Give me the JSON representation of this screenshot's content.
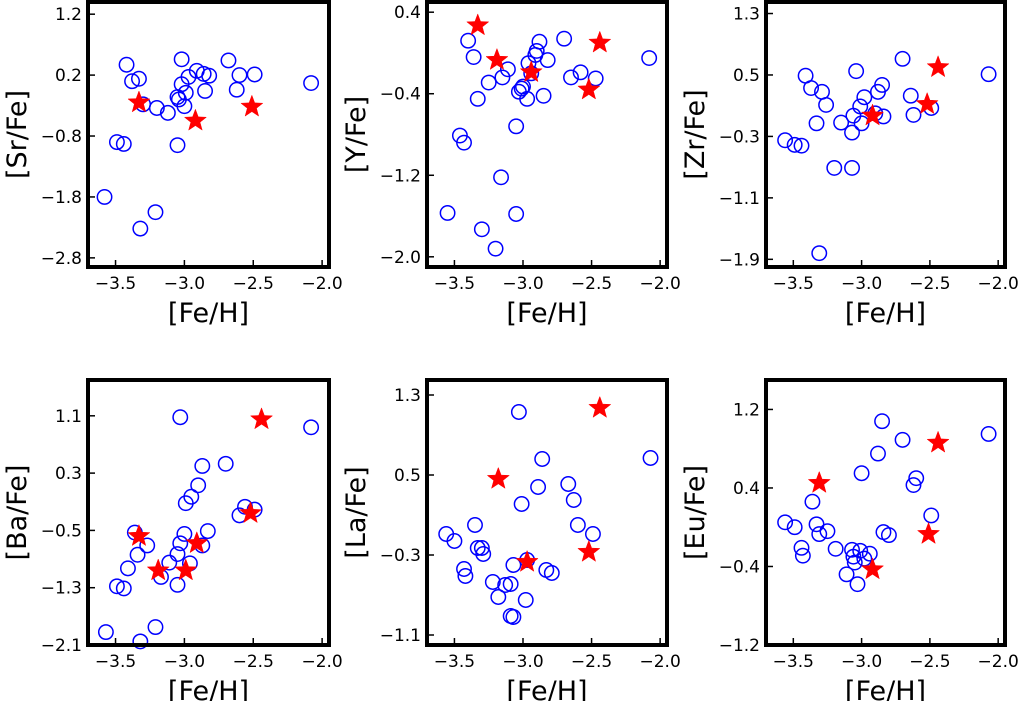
{
  "figure": {
    "colors": {
      "circle": "#0000ff",
      "star": "#ff0000",
      "axis": "#000000"
    }
  },
  "chart_data": [
    {
      "type": "scatter",
      "name": "sr",
      "xlabel": "[Fe/H]",
      "ylabel": "[Sr/Fe]",
      "xlim": [
        -3.7,
        -1.95
      ],
      "ylim": [
        -2.95,
        1.4
      ],
      "xticks": [
        -3.5,
        -3.0,
        -2.5,
        -2.0
      ],
      "xtick_labels": [
        "−3.5",
        "−3.0",
        "−2.5",
        "−2.0"
      ],
      "yticks": [
        1.2,
        0.2,
        -0.8,
        -1.8,
        -2.8
      ],
      "ytick_labels": [
        "1.2",
        "0.2",
        "−0.8",
        "−1.8",
        "−2.8"
      ],
      "series": [
        {
          "name": "circles",
          "marker": "circle",
          "points": [
            [
              -3.58,
              -1.8
            ],
            [
              -3.49,
              -0.9
            ],
            [
              -3.44,
              -0.93
            ],
            [
              -3.42,
              0.37
            ],
            [
              -3.38,
              0.1
            ],
            [
              -3.33,
              0.14
            ],
            [
              -3.32,
              -2.32
            ],
            [
              -3.3,
              -0.28
            ],
            [
              -3.21,
              -2.05
            ],
            [
              -3.2,
              -0.34
            ],
            [
              -3.12,
              -0.42
            ],
            [
              -3.05,
              -0.95
            ],
            [
              -3.05,
              -0.16
            ],
            [
              -3.04,
              -0.2
            ],
            [
              -3.02,
              0.46
            ],
            [
              -3.02,
              0.05
            ],
            [
              -3.0,
              -0.31
            ],
            [
              -2.99,
              -0.09
            ],
            [
              -2.97,
              0.17
            ],
            [
              -2.91,
              0.27
            ],
            [
              -2.86,
              0.22
            ],
            [
              -2.85,
              -0.06
            ],
            [
              -2.82,
              0.19
            ],
            [
              -2.68,
              0.44
            ],
            [
              -2.62,
              -0.04
            ],
            [
              -2.6,
              0.2
            ],
            [
              -2.49,
              0.21
            ],
            [
              -2.08,
              0.07
            ]
          ]
        },
        {
          "name": "stars",
          "marker": "star",
          "points": [
            [
              -3.33,
              -0.25
            ],
            [
              -2.92,
              -0.55
            ],
            [
              -2.51,
              -0.32
            ]
          ]
        }
      ]
    },
    {
      "type": "scatter",
      "name": "y",
      "xlabel": "[Fe/H]",
      "ylabel": "[Y/Fe]",
      "xlim": [
        -3.7,
        -1.95
      ],
      "ylim": [
        -2.1,
        0.5
      ],
      "xticks": [
        -3.5,
        -3.0,
        -2.5,
        -2.0
      ],
      "xtick_labels": [
        "−3.5",
        "−3.0",
        "−2.5",
        "−2.0"
      ],
      "yticks": [
        0.4,
        -0.4,
        -1.2,
        -2.0
      ],
      "ytick_labels": [
        "0.4",
        "−0.4",
        "−1.2",
        "−2.0"
      ],
      "series": [
        {
          "name": "circles",
          "marker": "circle",
          "points": [
            [
              -3.55,
              -1.57
            ],
            [
              -3.46,
              -0.81
            ],
            [
              -3.43,
              -0.88
            ],
            [
              -3.4,
              0.12
            ],
            [
              -3.36,
              -0.04
            ],
            [
              -3.33,
              -0.45
            ],
            [
              -3.3,
              -1.73
            ],
            [
              -3.25,
              -0.29
            ],
            [
              -3.2,
              -1.92
            ],
            [
              -3.16,
              -1.22
            ],
            [
              -3.15,
              -0.24
            ],
            [
              -3.11,
              -0.16
            ],
            [
              -3.05,
              -0.72
            ],
            [
              -3.05,
              -1.58
            ],
            [
              -3.03,
              -0.38
            ],
            [
              -3.01,
              -0.35
            ],
            [
              -3.0,
              -0.33
            ],
            [
              -2.97,
              -0.45
            ],
            [
              -2.96,
              -0.1
            ],
            [
              -2.94,
              -0.2
            ],
            [
              -2.91,
              -0.02
            ],
            [
              -2.9,
              0.02
            ],
            [
              -2.88,
              0.11
            ],
            [
              -2.85,
              -0.42
            ],
            [
              -2.82,
              -0.07
            ],
            [
              -2.7,
              0.14
            ],
            [
              -2.65,
              -0.24
            ],
            [
              -2.58,
              -0.19
            ],
            [
              -2.47,
              -0.25
            ],
            [
              -2.08,
              -0.05
            ]
          ]
        },
        {
          "name": "stars",
          "marker": "star",
          "points": [
            [
              -3.33,
              0.27
            ],
            [
              -3.19,
              -0.07
            ],
            [
              -2.94,
              -0.19
            ],
            [
              -2.52,
              -0.36
            ],
            [
              -2.44,
              0.1
            ]
          ]
        }
      ]
    },
    {
      "type": "scatter",
      "name": "zr",
      "xlabel": "[Fe/H]",
      "ylabel": "[Zr/Fe]",
      "xlim": [
        -3.7,
        -1.95
      ],
      "ylim": [
        -2.0,
        1.45
      ],
      "xticks": [
        -3.5,
        -3.0,
        -2.5,
        -2.0
      ],
      "xtick_labels": [
        "−3.5",
        "−3.0",
        "−2.5",
        "−2.0"
      ],
      "yticks": [
        1.3,
        0.5,
        -0.3,
        -1.1,
        -1.9
      ],
      "ytick_labels": [
        "1.3",
        "0.5",
        "−0.3",
        "−1.1",
        "−1.9"
      ],
      "series": [
        {
          "name": "circles",
          "marker": "circle",
          "points": [
            [
              -3.56,
              -0.35
            ],
            [
              -3.49,
              -0.41
            ],
            [
              -3.44,
              -0.42
            ],
            [
              -3.41,
              0.49
            ],
            [
              -3.37,
              0.33
            ],
            [
              -3.33,
              -0.13
            ],
            [
              -3.31,
              -1.82
            ],
            [
              -3.29,
              0.28
            ],
            [
              -3.26,
              0.11
            ],
            [
              -3.2,
              -0.71
            ],
            [
              -3.15,
              -0.12
            ],
            [
              -3.07,
              -0.71
            ],
            [
              -3.07,
              -0.25
            ],
            [
              -3.06,
              -0.03
            ],
            [
              -3.04,
              0.55
            ],
            [
              -3.01,
              0.09
            ],
            [
              -3.0,
              -0.13
            ],
            [
              -2.98,
              0.21
            ],
            [
              -2.9,
              0.0
            ],
            [
              -2.88,
              0.28
            ],
            [
              -2.85,
              0.37
            ],
            [
              -2.84,
              -0.04
            ],
            [
              -2.7,
              0.71
            ],
            [
              -2.64,
              0.23
            ],
            [
              -2.62,
              -0.02
            ],
            [
              -2.49,
              0.07
            ],
            [
              -2.07,
              0.51
            ]
          ]
        },
        {
          "name": "stars",
          "marker": "star",
          "points": [
            [
              -2.92,
              -0.03
            ],
            [
              -2.52,
              0.12
            ],
            [
              -2.44,
              0.6
            ]
          ]
        }
      ]
    },
    {
      "type": "scatter",
      "name": "ba",
      "xlabel": "[Fe/H]",
      "ylabel": "[Ba/Fe]",
      "xlim": [
        -3.7,
        -1.95
      ],
      "ylim": [
        -2.1,
        1.6
      ],
      "xticks": [
        -3.5,
        -3.0,
        -2.5,
        -2.0
      ],
      "xtick_labels": [
        "−3.5",
        "−3.0",
        "−2.5",
        "−2.0"
      ],
      "yticks": [
        1.1,
        0.3,
        -0.5,
        -1.3,
        -2.1
      ],
      "ytick_labels": [
        "1.1",
        "0.3",
        "−0.5",
        "−1.3",
        "−2.1"
      ],
      "series": [
        {
          "name": "circles",
          "marker": "circle",
          "points": [
            [
              -3.57,
              -1.92
            ],
            [
              -3.49,
              -1.28
            ],
            [
              -3.44,
              -1.31
            ],
            [
              -3.41,
              -1.03
            ],
            [
              -3.36,
              -0.53
            ],
            [
              -3.34,
              -0.84
            ],
            [
              -3.32,
              -2.05
            ],
            [
              -3.27,
              -0.71
            ],
            [
              -3.21,
              -1.85
            ],
            [
              -3.17,
              -1.15
            ],
            [
              -3.11,
              -0.95
            ],
            [
              -3.05,
              -1.26
            ],
            [
              -3.05,
              -0.83
            ],
            [
              -3.03,
              -0.68
            ],
            [
              -3.03,
              1.08
            ],
            [
              -3.0,
              -0.55
            ],
            [
              -2.99,
              -0.12
            ],
            [
              -2.96,
              -0.96
            ],
            [
              -2.95,
              -0.03
            ],
            [
              -2.9,
              0.13
            ],
            [
              -2.87,
              0.4
            ],
            [
              -2.87,
              -0.71
            ],
            [
              -2.83,
              -0.51
            ],
            [
              -2.7,
              0.43
            ],
            [
              -2.6,
              -0.29
            ],
            [
              -2.56,
              -0.17
            ],
            [
              -2.49,
              -0.21
            ],
            [
              -2.08,
              0.94
            ]
          ]
        },
        {
          "name": "stars",
          "marker": "star",
          "points": [
            [
              -3.33,
              -0.58
            ],
            [
              -3.19,
              -1.06
            ],
            [
              -2.99,
              -1.06
            ],
            [
              -2.91,
              -0.68
            ],
            [
              -2.52,
              -0.26
            ],
            [
              -2.44,
              1.05
            ]
          ]
        }
      ]
    },
    {
      "type": "scatter",
      "name": "la",
      "xlabel": "[Fe/H]",
      "ylabel": "[La/Fe]",
      "xlim": [
        -3.7,
        -1.95
      ],
      "ylim": [
        -1.2,
        1.45
      ],
      "xticks": [
        -3.5,
        -3.0,
        -2.5,
        -2.0
      ],
      "xtick_labels": [
        "−3.5",
        "−3.0",
        "−2.5",
        "−2.0"
      ],
      "yticks": [
        1.3,
        0.5,
        -0.3,
        -1.1
      ],
      "ytick_labels": [
        "1.3",
        "0.5",
        "−0.3",
        "−1.1"
      ],
      "series": [
        {
          "name": "circles",
          "marker": "circle",
          "points": [
            [
              -3.56,
              -0.09
            ],
            [
              -3.5,
              -0.16
            ],
            [
              -3.43,
              -0.44
            ],
            [
              -3.42,
              -0.51
            ],
            [
              -3.35,
              0.0
            ],
            [
              -3.33,
              -0.23
            ],
            [
              -3.3,
              -0.23
            ],
            [
              -3.29,
              -0.29
            ],
            [
              -3.22,
              -0.57
            ],
            [
              -3.18,
              -0.72
            ],
            [
              -3.13,
              -0.6
            ],
            [
              -3.09,
              -0.59
            ],
            [
              -3.09,
              -0.91
            ],
            [
              -3.07,
              -0.92
            ],
            [
              -3.07,
              -0.4
            ],
            [
              -3.03,
              1.13
            ],
            [
              -3.01,
              0.21
            ],
            [
              -2.98,
              -0.75
            ],
            [
              -2.97,
              -0.35
            ],
            [
              -2.89,
              0.38
            ],
            [
              -2.86,
              0.66
            ],
            [
              -2.83,
              -0.45
            ],
            [
              -2.79,
              -0.48
            ],
            [
              -2.67,
              0.41
            ],
            [
              -2.63,
              0.25
            ],
            [
              -2.6,
              0.0
            ],
            [
              -2.49,
              -0.09
            ],
            [
              -2.07,
              0.67
            ]
          ]
        },
        {
          "name": "stars",
          "marker": "star",
          "points": [
            [
              -3.18,
              0.46
            ],
            [
              -2.97,
              -0.37
            ],
            [
              -2.52,
              -0.27
            ],
            [
              -2.44,
              1.17
            ]
          ]
        }
      ]
    },
    {
      "type": "scatter",
      "name": "eu",
      "xlabel": "[Fe/H]",
      "ylabel": "[Eu/Fe]",
      "xlim": [
        -3.7,
        -1.95
      ],
      "ylim": [
        -1.2,
        1.5
      ],
      "xticks": [
        -3.5,
        -3.0,
        -2.5,
        -2.0
      ],
      "xtick_labels": [
        "−3.5",
        "−3.0",
        "−2.5",
        "−2.0"
      ],
      "yticks": [
        1.2,
        0.4,
        -0.4,
        -1.2
      ],
      "ytick_labels": [
        "1.2",
        "0.4",
        "−0.4",
        "−1.2"
      ],
      "series": [
        {
          "name": "circles",
          "marker": "circle",
          "points": [
            [
              -3.56,
              0.05
            ],
            [
              -3.49,
              0.0
            ],
            [
              -3.44,
              -0.21
            ],
            [
              -3.43,
              -0.29
            ],
            [
              -3.36,
              0.26
            ],
            [
              -3.33,
              0.03
            ],
            [
              -3.31,
              -0.07
            ],
            [
              -3.25,
              -0.04
            ],
            [
              -3.19,
              -0.22
            ],
            [
              -3.11,
              -0.48
            ],
            [
              -3.07,
              -0.23
            ],
            [
              -3.06,
              -0.3
            ],
            [
              -3.05,
              -0.36
            ],
            [
              -3.03,
              -0.58
            ],
            [
              -3.01,
              -0.24
            ],
            [
              -3.0,
              0.55
            ],
            [
              -2.98,
              -0.32
            ],
            [
              -2.94,
              -0.27
            ],
            [
              -2.88,
              0.75
            ],
            [
              -2.85,
              1.08
            ],
            [
              -2.84,
              -0.05
            ],
            [
              -2.8,
              -0.08
            ],
            [
              -2.7,
              0.89
            ],
            [
              -2.62,
              0.43
            ],
            [
              -2.6,
              0.5
            ],
            [
              -2.49,
              0.12
            ],
            [
              -2.07,
              0.95
            ]
          ]
        },
        {
          "name": "stars",
          "marker": "star",
          "points": [
            [
              -3.31,
              0.45
            ],
            [
              -2.92,
              -0.43
            ],
            [
              -2.51,
              -0.07
            ],
            [
              -2.44,
              0.86
            ]
          ]
        }
      ]
    }
  ]
}
